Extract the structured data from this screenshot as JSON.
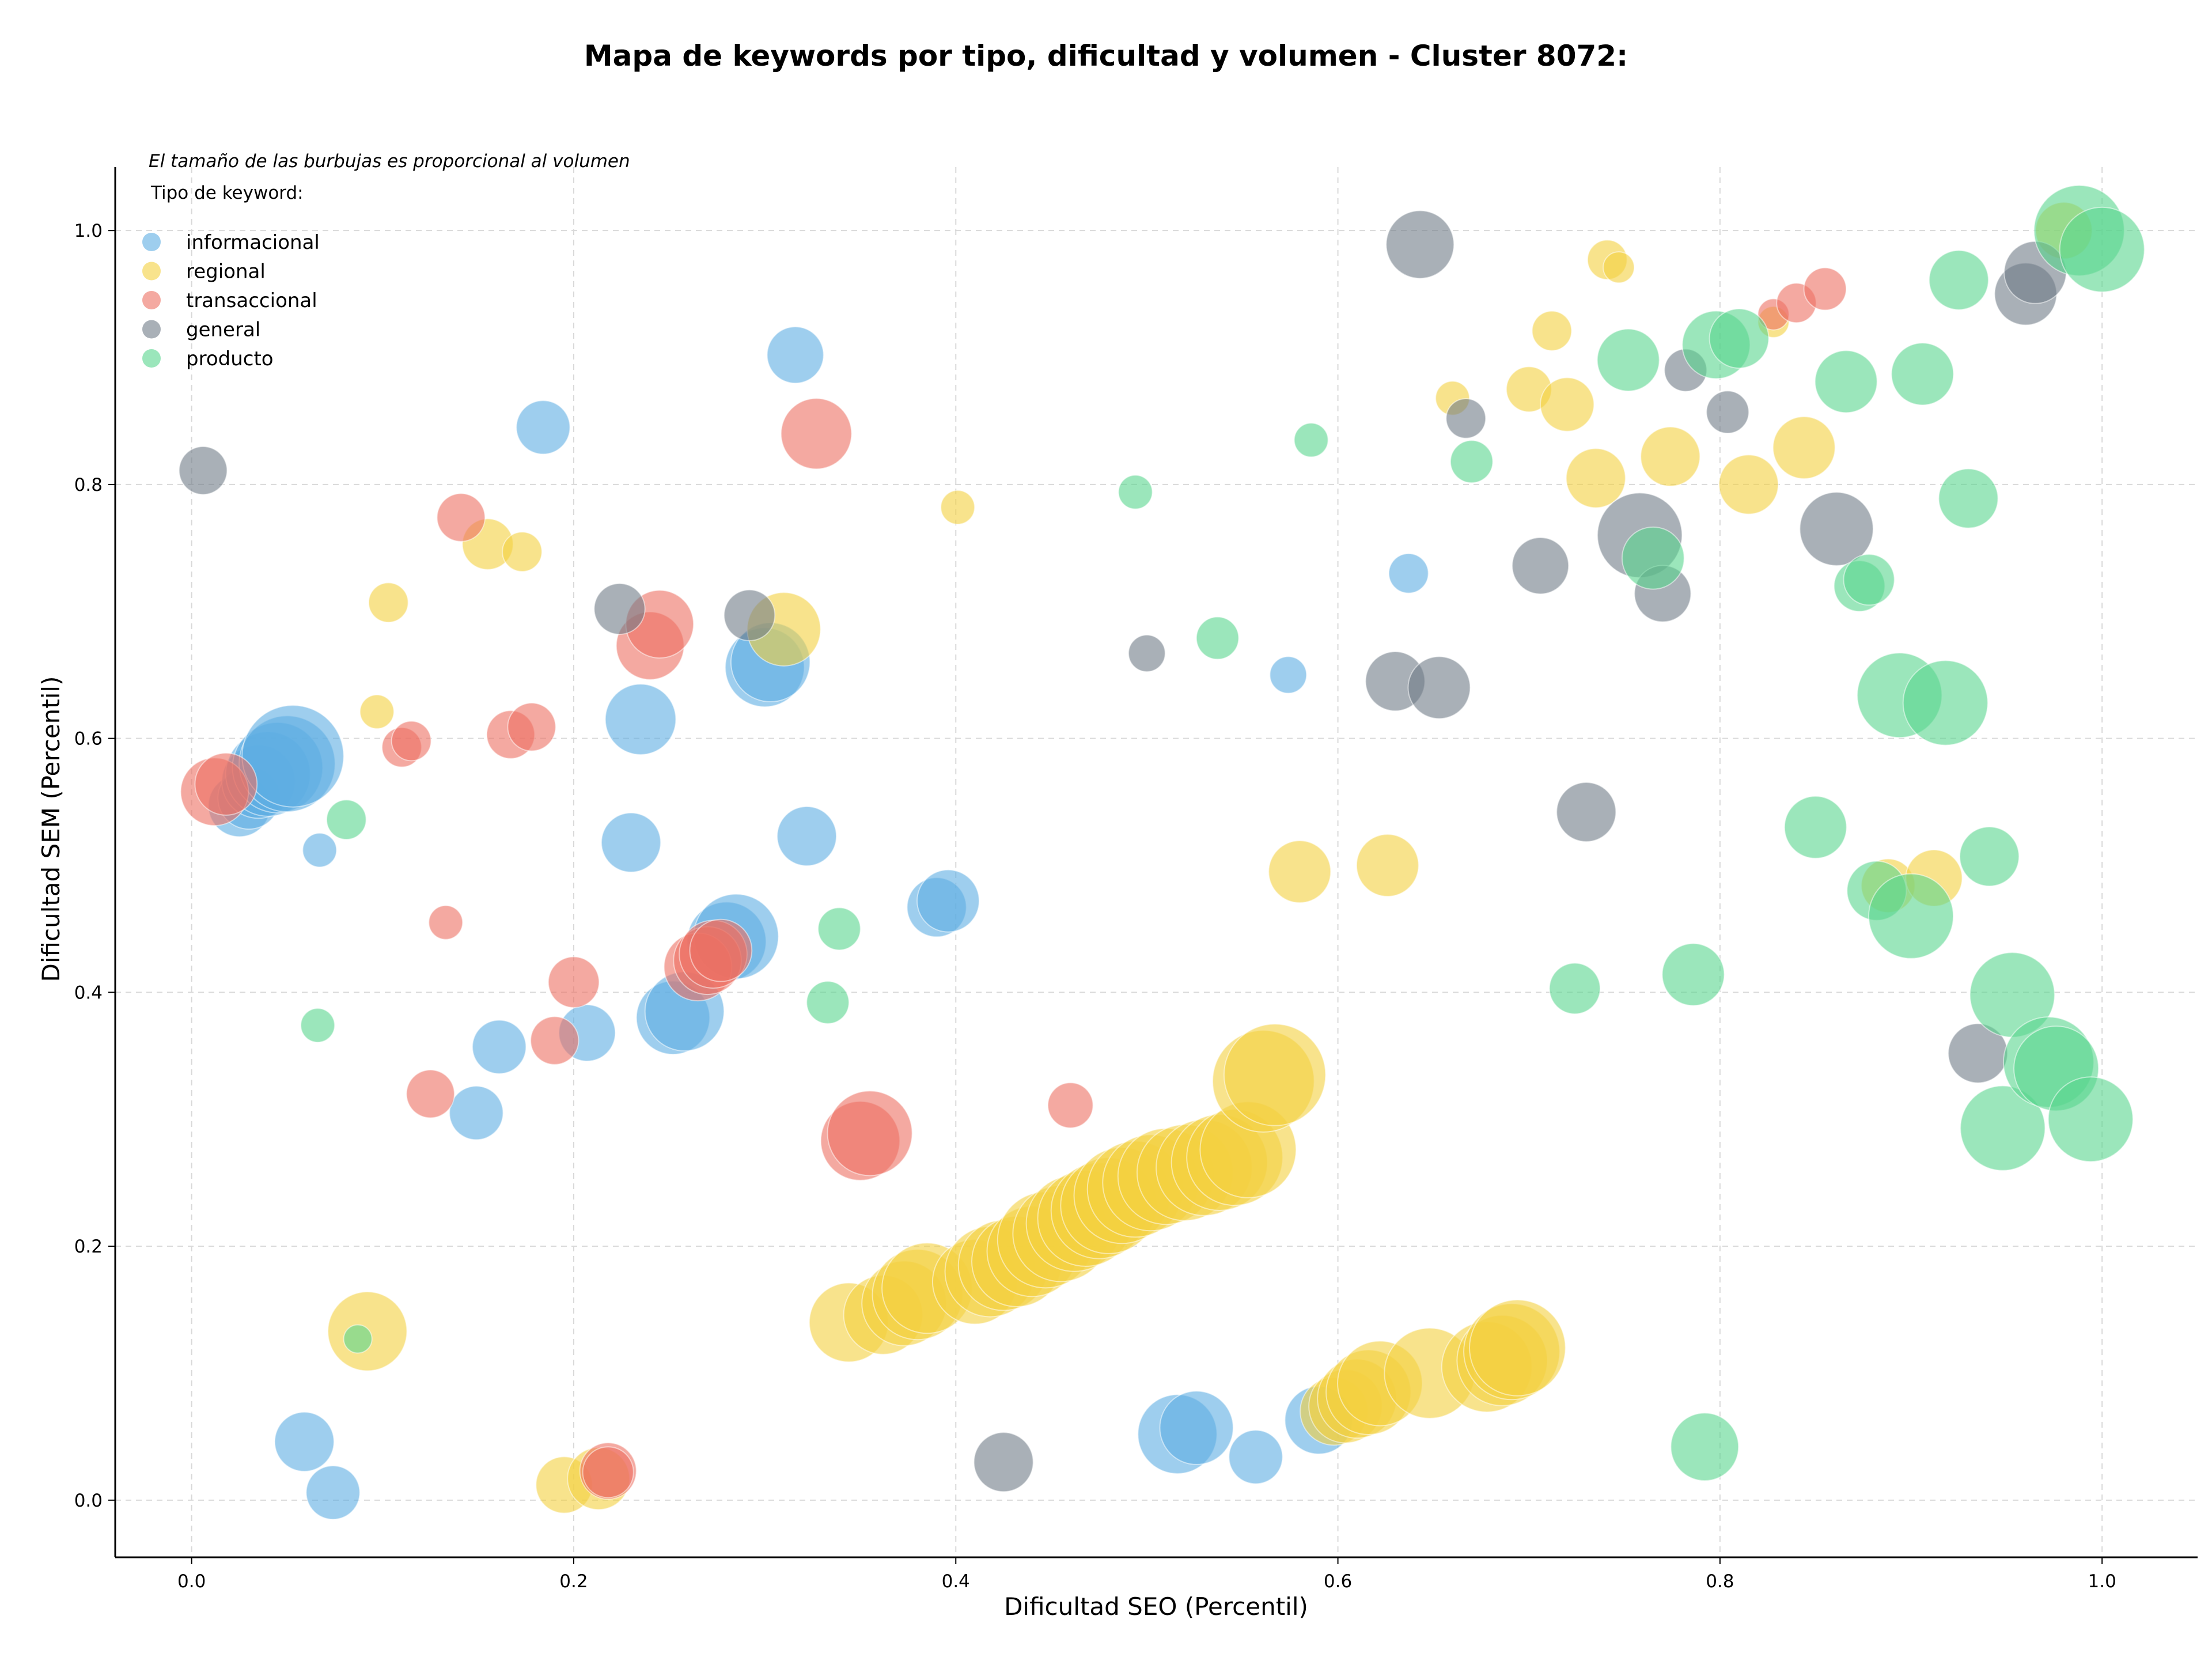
{
  "chart_data": {
    "type": "scatter",
    "title": "Mapa de keywords por tipo, dificultad y volumen - Cluster 8072:",
    "xlabel": "Dificultad SEO (Percentil)",
    "ylabel": "Dificultad SEM (Percentil)",
    "xlim": [
      -0.04,
      1.05
    ],
    "ylim": [
      -0.045,
      1.05
    ],
    "xticks": [
      "0.0",
      "0.2",
      "0.4",
      "0.6",
      "0.8",
      "1.0"
    ],
    "yticks": [
      "0.0",
      "0.2",
      "0.4",
      "0.6",
      "0.8",
      "1.0"
    ],
    "grid": true,
    "note": "El tamaño de las burbujas es proporcional al volumen",
    "legend": {
      "title": "Tipo de keyword:",
      "placement": "top-left"
    },
    "series": [
      {
        "name": "informacional",
        "color": "#5dade2",
        "points": [
          [
            0.025,
            0.547,
            22
          ],
          [
            0.03,
            0.553,
            22
          ],
          [
            0.035,
            0.566,
            26
          ],
          [
            0.04,
            0.572,
            30
          ],
          [
            0.045,
            0.577,
            32
          ],
          [
            0.05,
            0.58,
            34
          ],
          [
            0.053,
            0.586,
            36
          ],
          [
            0.067,
            0.512,
            12
          ],
          [
            0.059,
            0.046,
            21
          ],
          [
            0.074,
            0.006,
            19
          ],
          [
            0.149,
            0.305,
            19
          ],
          [
            0.161,
            0.357,
            19
          ],
          [
            0.184,
            0.845,
            19
          ],
          [
            0.207,
            0.368,
            20
          ],
          [
            0.23,
            0.518,
            21
          ],
          [
            0.235,
            0.615,
            25
          ],
          [
            0.252,
            0.38,
            26
          ],
          [
            0.258,
            0.385,
            28
          ],
          [
            0.28,
            0.44,
            28
          ],
          [
            0.285,
            0.444,
            30
          ],
          [
            0.3,
            0.656,
            28
          ],
          [
            0.303,
            0.66,
            28
          ],
          [
            0.316,
            0.902,
            20
          ],
          [
            0.322,
            0.523,
            21
          ],
          [
            0.39,
            0.467,
            21
          ],
          [
            0.396,
            0.472,
            22
          ],
          [
            0.516,
            0.052,
            28
          ],
          [
            0.526,
            0.057,
            26
          ],
          [
            0.557,
            0.034,
            19
          ],
          [
            0.59,
            0.063,
            24
          ],
          [
            0.574,
            0.65,
            13
          ],
          [
            0.637,
            0.73,
            14
          ]
        ]
      },
      {
        "name": "regional",
        "color": "#f4d03f",
        "points": [
          [
            0.092,
            0.133,
            28
          ],
          [
            0.097,
            0.621,
            12
          ],
          [
            0.103,
            0.707,
            14
          ],
          [
            0.155,
            0.753,
            18
          ],
          [
            0.173,
            0.747,
            14
          ],
          [
            0.195,
            0.012,
            20
          ],
          [
            0.213,
            0.017,
            22
          ],
          [
            0.31,
            0.686,
            26
          ],
          [
            0.401,
            0.782,
            12
          ],
          [
            0.344,
            0.14,
            28
          ],
          [
            0.362,
            0.146,
            28
          ],
          [
            0.373,
            0.155,
            30
          ],
          [
            0.38,
            0.162,
            32
          ],
          [
            0.385,
            0.167,
            32
          ],
          [
            0.41,
            0.172,
            30
          ],
          [
            0.418,
            0.18,
            32
          ],
          [
            0.425,
            0.185,
            32
          ],
          [
            0.432,
            0.188,
            32
          ],
          [
            0.44,
            0.196,
            32
          ],
          [
            0.447,
            0.205,
            34
          ],
          [
            0.455,
            0.21,
            34
          ],
          [
            0.462,
            0.218,
            34
          ],
          [
            0.468,
            0.222,
            34
          ],
          [
            0.475,
            0.228,
            34
          ],
          [
            0.48,
            0.232,
            34
          ],
          [
            0.487,
            0.24,
            34
          ],
          [
            0.494,
            0.245,
            34
          ],
          [
            0.502,
            0.25,
            34
          ],
          [
            0.51,
            0.255,
            34
          ],
          [
            0.52,
            0.258,
            34
          ],
          [
            0.53,
            0.262,
            34
          ],
          [
            0.538,
            0.266,
            34
          ],
          [
            0.546,
            0.27,
            34
          ],
          [
            0.553,
            0.276,
            34
          ],
          [
            0.561,
            0.33,
            36
          ],
          [
            0.567,
            0.335,
            36
          ],
          [
            0.58,
            0.495,
            22
          ],
          [
            0.626,
            0.5,
            22
          ],
          [
            0.598,
            0.07,
            24
          ],
          [
            0.604,
            0.074,
            26
          ],
          [
            0.61,
            0.08,
            28
          ],
          [
            0.616,
            0.085,
            30
          ],
          [
            0.622,
            0.092,
            30
          ],
          [
            0.648,
            0.1,
            32
          ],
          [
            0.678,
            0.105,
            32
          ],
          [
            0.686,
            0.11,
            32
          ],
          [
            0.691,
            0.117,
            34
          ],
          [
            0.694,
            0.12,
            34
          ],
          [
            0.66,
            0.868,
            12
          ],
          [
            0.7,
            0.875,
            16
          ],
          [
            0.712,
            0.921,
            14
          ],
          [
            0.72,
            0.863,
            19
          ],
          [
            0.735,
            0.805,
            21
          ],
          [
            0.741,
            0.977,
            14
          ],
          [
            0.747,
            0.971,
            11
          ],
          [
            0.774,
            0.822,
            21
          ],
          [
            0.815,
            0.8,
            21
          ],
          [
            0.828,
            0.928,
            11
          ],
          [
            0.844,
            0.829,
            22
          ],
          [
            0.888,
            0.484,
            19
          ],
          [
            0.912,
            0.49,
            20
          ],
          [
            0.98,
            1.0,
            20
          ]
        ]
      },
      {
        "name": "transaccional",
        "color": "#ec7063",
        "points": [
          [
            0.012,
            0.558,
            24
          ],
          [
            0.018,
            0.564,
            22
          ],
          [
            0.11,
            0.593,
            14
          ],
          [
            0.115,
            0.598,
            14
          ],
          [
            0.133,
            0.455,
            12
          ],
          [
            0.125,
            0.32,
            17
          ],
          [
            0.141,
            0.774,
            17
          ],
          [
            0.167,
            0.603,
            17
          ],
          [
            0.178,
            0.609,
            17
          ],
          [
            0.19,
            0.362,
            17
          ],
          [
            0.2,
            0.408,
            18
          ],
          [
            0.218,
            0.023,
            20
          ],
          [
            0.218,
            0.022,
            18
          ],
          [
            0.24,
            0.673,
            24
          ],
          [
            0.245,
            0.69,
            24
          ],
          [
            0.265,
            0.42,
            24
          ],
          [
            0.27,
            0.425,
            24
          ],
          [
            0.273,
            0.43,
            24
          ],
          [
            0.277,
            0.433,
            22
          ],
          [
            0.327,
            0.84,
            25
          ],
          [
            0.35,
            0.283,
            28
          ],
          [
            0.355,
            0.289,
            30
          ],
          [
            0.46,
            0.311,
            16
          ],
          [
            0.828,
            0.934,
            11
          ],
          [
            0.84,
            0.943,
            14
          ],
          [
            0.855,
            0.954,
            15
          ]
        ]
      },
      {
        "name": "general",
        "color": "#707b87",
        "points": [
          [
            0.006,
            0.811,
            17
          ],
          [
            0.224,
            0.702,
            18
          ],
          [
            0.292,
            0.697,
            18
          ],
          [
            0.425,
            0.03,
            21
          ],
          [
            0.5,
            0.667,
            13
          ],
          [
            0.643,
            0.989,
            24
          ],
          [
            0.63,
            0.645,
            21
          ],
          [
            0.653,
            0.64,
            22
          ],
          [
            0.667,
            0.852,
            14
          ],
          [
            0.706,
            0.736,
            20
          ],
          [
            0.73,
            0.542,
            21
          ],
          [
            0.758,
            0.76,
            30
          ],
          [
            0.77,
            0.714,
            20
          ],
          [
            0.782,
            0.89,
            15
          ],
          [
            0.804,
            0.857,
            15
          ],
          [
            0.861,
            0.765,
            26
          ],
          [
            0.935,
            0.352,
            21
          ],
          [
            0.96,
            0.95,
            22
          ],
          [
            0.965,
            0.967,
            22
          ]
        ]
      },
      {
        "name": "producto",
        "color": "#58d68d",
        "points": [
          [
            0.066,
            0.374,
            12
          ],
          [
            0.081,
            0.536,
            14
          ],
          [
            0.087,
            0.127,
            10
          ],
          [
            0.333,
            0.392,
            15
          ],
          [
            0.339,
            0.45,
            15
          ],
          [
            0.494,
            0.794,
            12
          ],
          [
            0.537,
            0.679,
            15
          ],
          [
            0.586,
            0.835,
            12
          ],
          [
            0.67,
            0.818,
            15
          ],
          [
            0.724,
            0.403,
            18
          ],
          [
            0.752,
            0.898,
            22
          ],
          [
            0.765,
            0.742,
            22
          ],
          [
            0.786,
            0.414,
            22
          ],
          [
            0.792,
            0.042,
            24
          ],
          [
            0.798,
            0.91,
            24
          ],
          [
            0.81,
            0.915,
            21
          ],
          [
            0.85,
            0.53,
            22
          ],
          [
            0.866,
            0.881,
            22
          ],
          [
            0.873,
            0.72,
            18
          ],
          [
            0.878,
            0.725,
            18
          ],
          [
            0.882,
            0.48,
            21
          ],
          [
            0.894,
            0.634,
            30
          ],
          [
            0.9,
            0.46,
            30
          ],
          [
            0.906,
            0.887,
            22
          ],
          [
            0.918,
            0.628,
            30
          ],
          [
            0.925,
            0.961,
            21
          ],
          [
            0.93,
            0.789,
            21
          ],
          [
            0.941,
            0.507,
            21
          ],
          [
            0.948,
            0.293,
            30
          ],
          [
            0.953,
            0.398,
            30
          ],
          [
            0.972,
            0.345,
            32
          ],
          [
            0.976,
            0.34,
            30
          ],
          [
            0.988,
            1.0,
            32
          ],
          [
            0.994,
            0.3,
            30
          ],
          [
            1.0,
            0.985,
            30
          ]
        ]
      }
    ]
  }
}
